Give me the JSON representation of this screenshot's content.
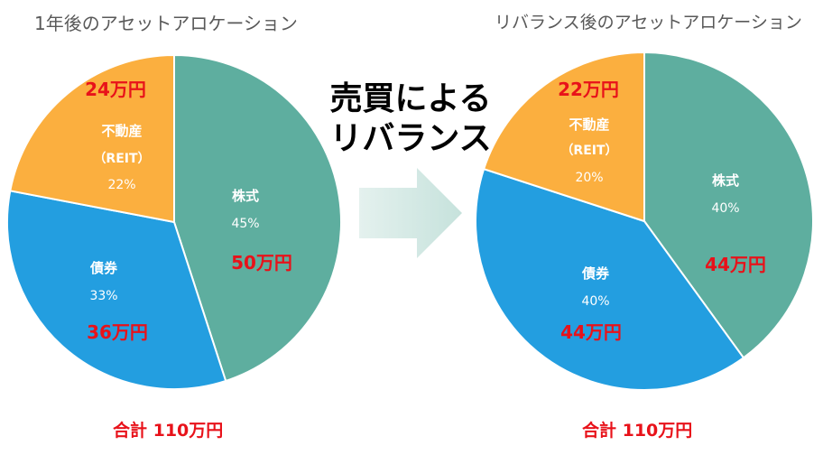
{
  "center": {
    "line1": "売買による",
    "line2": "リバランス"
  },
  "chart_data": [
    {
      "type": "pie",
      "title": "1年後のアセットアロケーション",
      "slices": [
        {
          "name": "株式",
          "percent": 45,
          "percent_label": "45%",
          "amount_label": "50万円",
          "color": "#5eae9f"
        },
        {
          "name": "債券",
          "percent": 33,
          "percent_label": "33%",
          "amount_label": "36万円",
          "color": "#239ee0"
        },
        {
          "name": "不動産",
          "sub": "（REIT）",
          "percent": 22,
          "percent_label": "22%",
          "amount_label": "24万円",
          "color": "#fbaf3f"
        }
      ],
      "total_label": "合計 110万円"
    },
    {
      "type": "pie",
      "title": "リバランス後のアセットアロケーション",
      "slices": [
        {
          "name": "株式",
          "percent": 40,
          "percent_label": "40%",
          "amount_label": "44万円",
          "color": "#5eae9f"
        },
        {
          "name": "債券",
          "percent": 40,
          "percent_label": "40%",
          "amount_label": "44万円",
          "color": "#239ee0"
        },
        {
          "name": "不動産",
          "sub": "（REIT）",
          "percent": 20,
          "percent_label": "20%",
          "amount_label": "22万円",
          "color": "#fbaf3f"
        }
      ],
      "total_label": "合計 110万円"
    }
  ]
}
